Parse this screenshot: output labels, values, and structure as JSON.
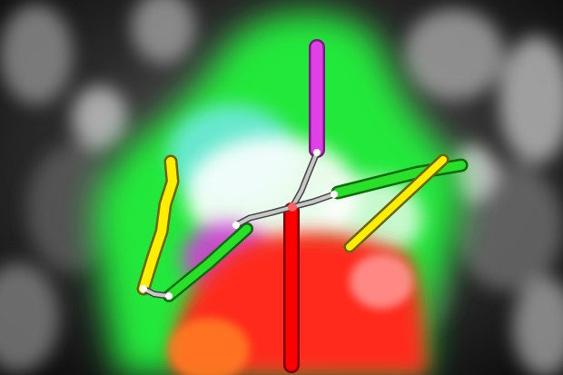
{
  "scene": {
    "kind": "pose-estimation-overlay",
    "background": "grayscale-crowd-photo",
    "segmentation_palette": {
      "body_green": "#22e83a",
      "torso_red": "#ff2a1a",
      "center_white": "#ffffff",
      "magenta_patch": "#d040d8",
      "cyan_glow": "#7fe8ff"
    },
    "limb_colors": {
      "head": "#e040e8",
      "torso": "#ff0000",
      "left_arm_upper": "#ffee00",
      "left_arm_lower": "#28e028",
      "right_arm_upper": "#28e028",
      "right_arm_lower": "#ffee00",
      "connector": "#c8c8c8"
    }
  }
}
